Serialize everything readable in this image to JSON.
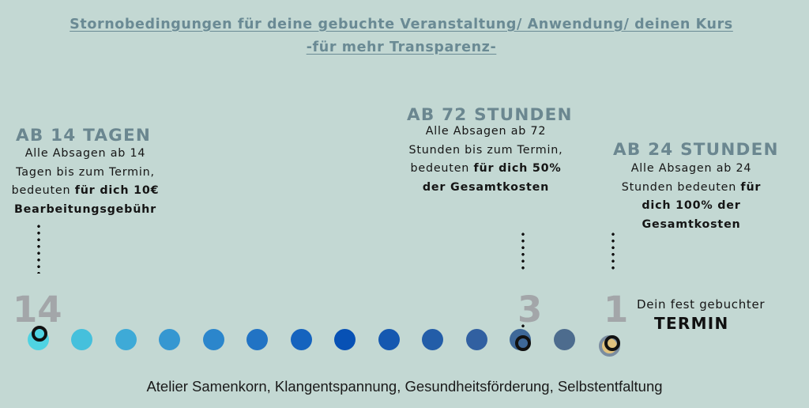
{
  "title": {
    "line1": "Stornobedingungen für deine gebuchte Veranstaltung/ Anwendung/ deinen Kurs",
    "line2": "-für mehr Transparenz-"
  },
  "blocks": {
    "days14": {
      "heading": "AB 14 TAGEN",
      "line1": "Alle Absagen ab 14",
      "line2": "Tagen bis zum Termin,",
      "line3_pre": "bedeuten ",
      "line3_bold": "für dich 10€",
      "line4_bold": "Bearbeitungsgebühr"
    },
    "hours72": {
      "heading": "AB 72 STUNDEN",
      "line1": "Alle Absagen ab 72",
      "line2": "Stunden bis zum Termin,",
      "line3_pre": "bedeuten ",
      "line3_bold": "für dich 50%",
      "line4_bold": "der Gesamtkosten"
    },
    "hours24": {
      "heading": "AB 24 STUNDEN",
      "line1": "Alle Absagen ab 24",
      "line2_pre": "Stunden bedeuten ",
      "line2_bold": "für",
      "line3_bold": "dich 100% der",
      "line4_bold": "Gesamtkosten"
    }
  },
  "markers": {
    "fourteen": "14",
    "three": "3",
    "one": "1"
  },
  "termin": {
    "small": "Dein fest gebuchter",
    "big": "TERMIN"
  },
  "timeline_colors": [
    "#4fd3e2",
    "#45c0dc",
    "#3eaad7",
    "#3597d1",
    "#2b86cc",
    "#2173c4",
    "#1563be",
    "#0751b5",
    "#1558b0",
    "#235da8",
    "#3160a1",
    "#3e6898",
    "#4d6c8e",
    "#e0c27e"
  ],
  "termin_dot_border": "#7b8da0",
  "footer": "Atelier Samenkorn, Klangentspannung, Gesundheitsförderung, Selbstentfaltung"
}
